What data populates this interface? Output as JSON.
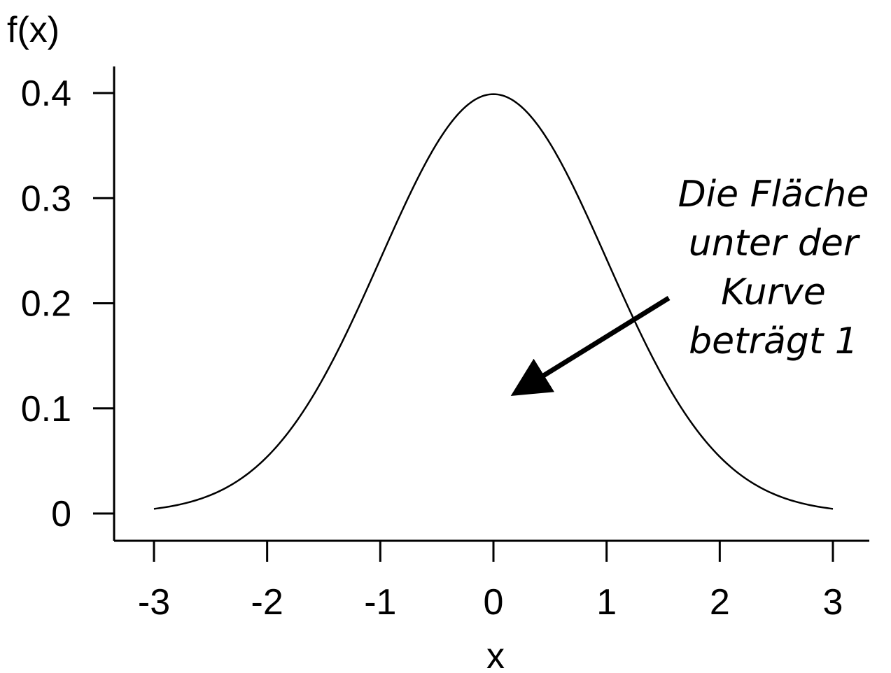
{
  "chart_data": {
    "type": "line",
    "title": "",
    "xlabel": "x",
    "ylabel": "f(x)",
    "xlim": [
      -3,
      3
    ],
    "ylim": [
      0,
      0.4
    ],
    "x_ticks": [
      -3,
      -2,
      -1,
      0,
      1,
      2,
      3
    ],
    "x_tick_labels": [
      "-3",
      "-2",
      "-1",
      "0",
      "1",
      "2",
      "3"
    ],
    "y_ticks": [
      0,
      0.1,
      0.2,
      0.3,
      0.4
    ],
    "y_tick_labels": [
      "0",
      "0.1",
      "0.2",
      "0.3",
      "0.4"
    ],
    "grid": false,
    "series": [
      {
        "function": "standard-normal-pdf",
        "mean": 0,
        "sd": 1,
        "color": "#000000",
        "x": [
          -3,
          -2.5,
          -2,
          -1.5,
          -1,
          -0.5,
          0,
          0.5,
          1,
          1.5,
          2,
          2.5,
          3
        ],
        "y": [
          0.0044,
          0.0175,
          0.054,
          0.1295,
          0.242,
          0.3521,
          0.3989,
          0.3521,
          0.242,
          0.1295,
          0.054,
          0.0175,
          0.0044
        ]
      }
    ],
    "annotation": {
      "lines": [
        "Die Fläche",
        "unter der",
        "Kurve",
        "beträgt 1"
      ],
      "arrow_to": {
        "x": 0.2,
        "y": 0.115
      },
      "arrow_from": {
        "x": 1.55,
        "y": 0.205
      },
      "color": "#000000"
    }
  }
}
